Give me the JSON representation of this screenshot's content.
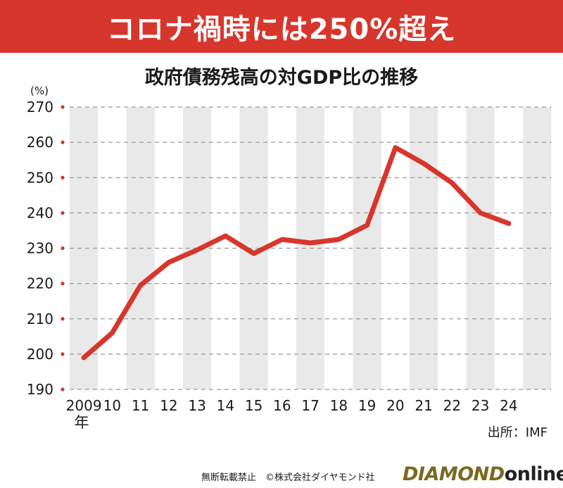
{
  "banner": {
    "title": "コロナ禍時には250%超え"
  },
  "chart_data": {
    "type": "line",
    "title": "政府債務残高の対GDP比の推移",
    "unit_label": "(%)",
    "year_suffix": "年",
    "x": [
      "2009",
      "10",
      "11",
      "12",
      "13",
      "14",
      "15",
      "16",
      "17",
      "18",
      "19",
      "20",
      "21",
      "22",
      "23",
      "24"
    ],
    "values": [
      199,
      206,
      219.5,
      226,
      229.5,
      233.5,
      228.5,
      232.5,
      231.5,
      232.5,
      236.5,
      258.5,
      254,
      248.5,
      240,
      237
    ],
    "ylim": [
      190,
      270
    ],
    "yticks": [
      "190",
      "200",
      "210",
      "220",
      "230",
      "240",
      "250",
      "260",
      "270"
    ],
    "grid": true,
    "line_color": "#d7362d",
    "band_color": "#e9e9e9",
    "tick_dot_color": "#d7362d"
  },
  "source": "出所：IMF",
  "footer": {
    "copyright": "無断転載禁止　©株式会社ダイヤモンド社",
    "brand_primary": "DIAMOND",
    "brand_secondary": "online"
  }
}
